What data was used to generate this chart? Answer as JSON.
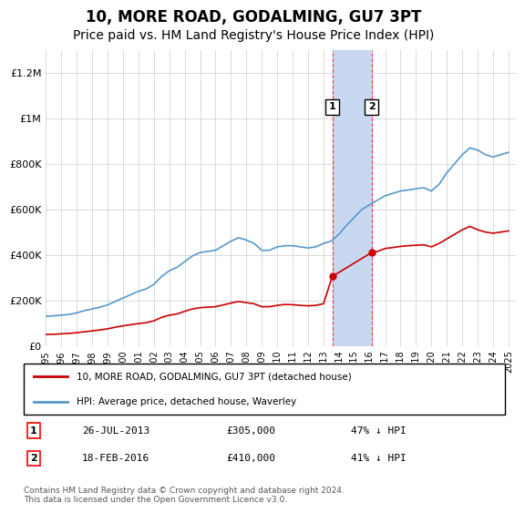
{
  "title": "10, MORE ROAD, GODALMING, GU7 3PT",
  "subtitle": "Price paid vs. HM Land Registry's House Price Index (HPI)",
  "title_fontsize": 12,
  "subtitle_fontsize": 10,
  "ylabel_ticks": [
    "£0",
    "£200K",
    "£400K",
    "£600K",
    "£800K",
    "£1M",
    "£1.2M"
  ],
  "ylabel_values": [
    0,
    200000,
    400000,
    600000,
    800000,
    1000000,
    1200000
  ],
  "ylim": [
    0,
    1300000
  ],
  "xlim_start": 1995.0,
  "xlim_end": 2025.5,
  "sale1_date": 2013.57,
  "sale1_price": 305000,
  "sale1_label": "26-JUL-2013",
  "sale1_amount": "£305,000",
  "sale1_pct": "47% ↓ HPI",
  "sale2_date": 2016.12,
  "sale2_price": 410000,
  "sale2_label": "18-FEB-2016",
  "sale2_amount": "£410,000",
  "sale2_pct": "41% ↓ HPI",
  "red_color": "#cc0000",
  "blue_color": "#5599cc",
  "shade_color": "#c8d8f0",
  "grid_color": "#cccccc",
  "legend_label_red": "10, MORE ROAD, GODALMING, GU7 3PT (detached house)",
  "legend_label_blue": "HPI: Average price, detached house, Waverley",
  "footer": "Contains HM Land Registry data © Crown copyright and database right 2024.\nThis data is licensed under the Open Government Licence v3.0.",
  "hpi_x": [
    1995.0,
    1995.5,
    1996.0,
    1996.5,
    1997.0,
    1997.5,
    1998.0,
    1998.5,
    1999.0,
    1999.5,
    2000.0,
    2000.5,
    2001.0,
    2001.5,
    2002.0,
    2002.5,
    2003.0,
    2003.5,
    2004.0,
    2004.5,
    2005.0,
    2005.5,
    2006.0,
    2006.5,
    2007.0,
    2007.5,
    2008.0,
    2008.5,
    2009.0,
    2009.5,
    2010.0,
    2010.5,
    2011.0,
    2011.5,
    2012.0,
    2012.5,
    2013.0,
    2013.5,
    2014.0,
    2014.5,
    2015.0,
    2015.5,
    2016.0,
    2016.5,
    2017.0,
    2017.5,
    2018.0,
    2018.5,
    2019.0,
    2019.5,
    2020.0,
    2020.5,
    2021.0,
    2021.5,
    2022.0,
    2022.5,
    2023.0,
    2023.5,
    2024.0,
    2024.5,
    2025.0
  ],
  "hpi_y": [
    130000,
    132000,
    135000,
    138000,
    145000,
    155000,
    162000,
    170000,
    180000,
    195000,
    210000,
    225000,
    240000,
    250000,
    270000,
    305000,
    330000,
    345000,
    370000,
    395000,
    410000,
    415000,
    420000,
    440000,
    460000,
    475000,
    465000,
    450000,
    420000,
    420000,
    435000,
    440000,
    440000,
    435000,
    430000,
    435000,
    450000,
    460000,
    490000,
    530000,
    565000,
    600000,
    620000,
    640000,
    660000,
    670000,
    680000,
    685000,
    690000,
    695000,
    680000,
    710000,
    760000,
    800000,
    840000,
    870000,
    860000,
    840000,
    830000,
    840000,
    850000
  ],
  "red_x": [
    1995.0,
    1995.5,
    1996.0,
    1996.5,
    1997.0,
    1997.5,
    1998.0,
    1998.5,
    1999.0,
    1999.5,
    2000.0,
    2000.5,
    2001.0,
    2001.5,
    2002.0,
    2002.5,
    2003.0,
    2003.5,
    2004.0,
    2004.5,
    2005.0,
    2005.5,
    2006.0,
    2006.5,
    2007.0,
    2007.5,
    2008.0,
    2008.5,
    2009.0,
    2009.5,
    2010.0,
    2010.5,
    2011.0,
    2011.5,
    2012.0,
    2012.5,
    2013.0,
    2013.57,
    2016.12,
    2016.5,
    2017.0,
    2017.5,
    2018.0,
    2018.5,
    2019.0,
    2019.5,
    2020.0,
    2020.5,
    2021.0,
    2021.5,
    2022.0,
    2022.5,
    2023.0,
    2023.5,
    2024.0,
    2024.5,
    2025.0
  ],
  "red_y": [
    50000,
    51000,
    53000,
    55000,
    58000,
    62000,
    66000,
    70000,
    75000,
    82000,
    88000,
    93000,
    98000,
    102000,
    110000,
    125000,
    135000,
    140000,
    152000,
    162000,
    168000,
    170000,
    172000,
    180000,
    188000,
    195000,
    190000,
    185000,
    172000,
    172000,
    178000,
    182000,
    181000,
    178000,
    176000,
    178000,
    185000,
    305000,
    410000,
    415000,
    428000,
    432000,
    437000,
    440000,
    442000,
    444000,
    435000,
    450000,
    470000,
    490000,
    510000,
    525000,
    510000,
    500000,
    495000,
    500000,
    505000
  ]
}
